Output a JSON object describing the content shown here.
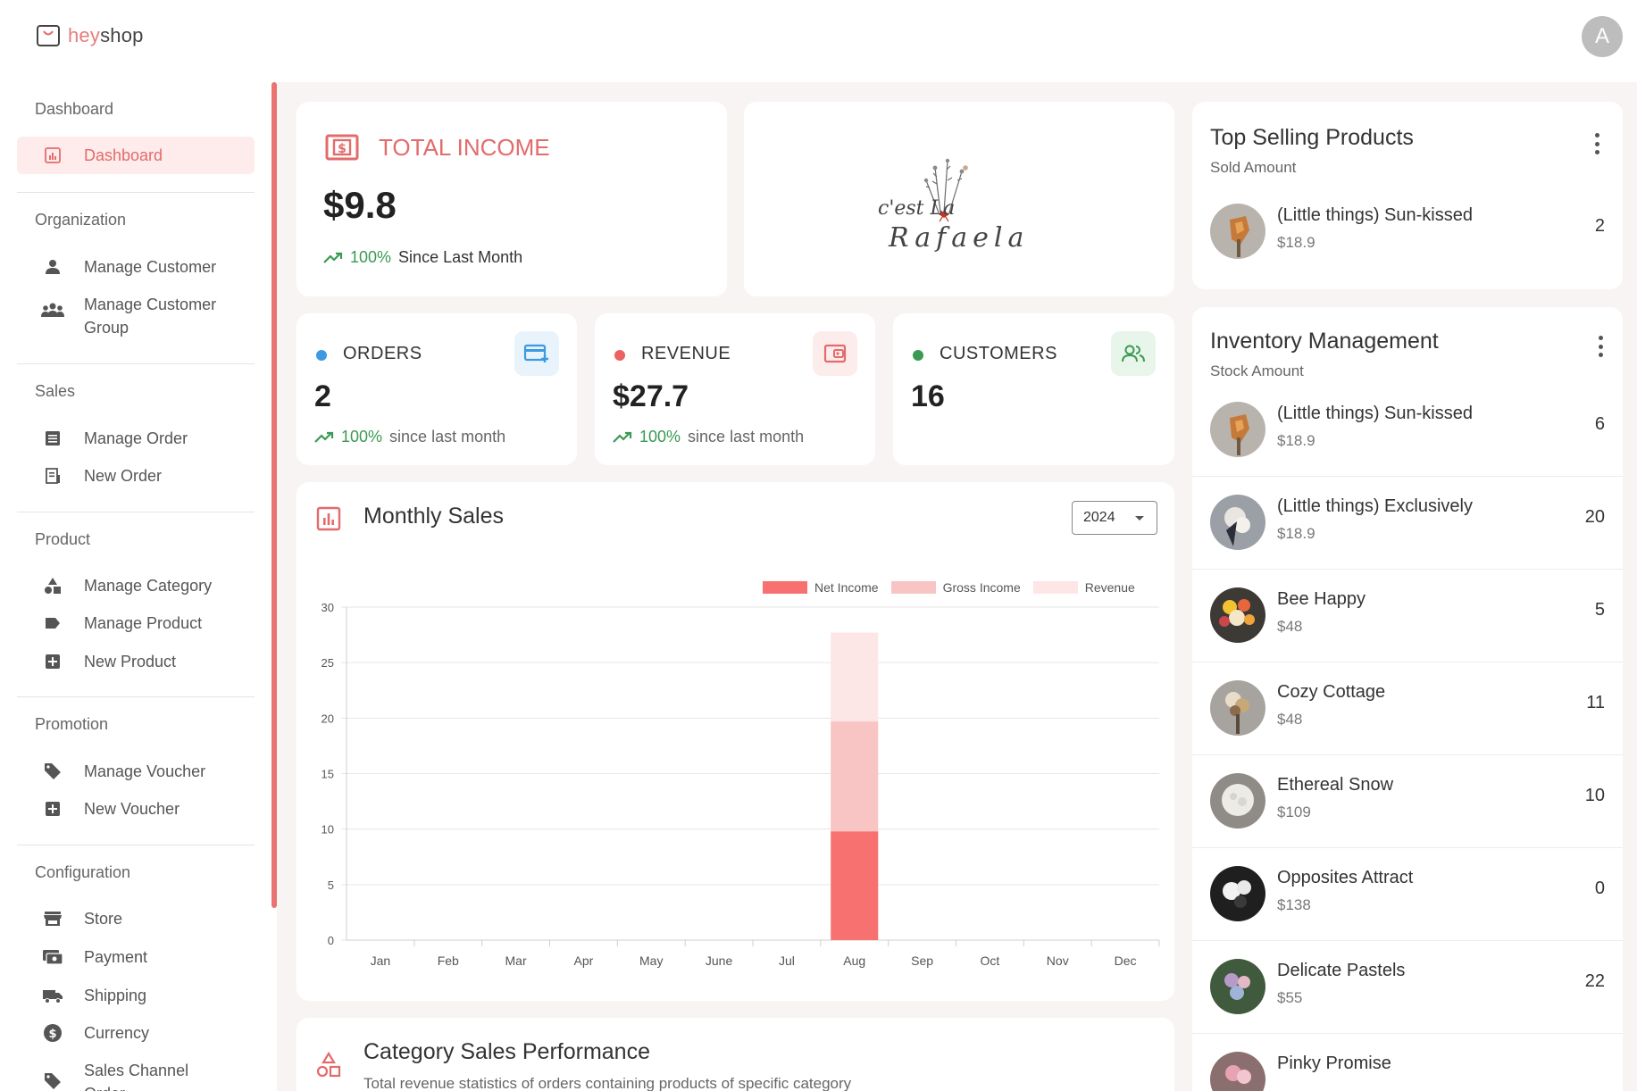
{
  "app": {
    "logo_hey": "hey",
    "logo_shop": "shop",
    "avatar_letter": "A"
  },
  "sidebar": {
    "sections": [
      {
        "title": "Dashboard",
        "items": [
          {
            "label": "Dashboard",
            "icon": "chart-icon",
            "active": true
          }
        ]
      },
      {
        "title": "Organization",
        "items": [
          {
            "label": "Manage Customer",
            "icon": "person-icon"
          },
          {
            "label": "Manage Customer Group",
            "icon": "group-icon"
          }
        ]
      },
      {
        "title": "Sales",
        "items": [
          {
            "label": "Manage Order",
            "icon": "list-icon"
          },
          {
            "label": "New Order",
            "icon": "receipt-icon"
          }
        ]
      },
      {
        "title": "Product",
        "items": [
          {
            "label": "Manage Category",
            "icon": "category-icon"
          },
          {
            "label": "Manage Product",
            "icon": "label-icon"
          },
          {
            "label": "New Product",
            "icon": "add-box-icon"
          }
        ]
      },
      {
        "title": "Promotion",
        "items": [
          {
            "label": "Manage Voucher",
            "icon": "tag-icon"
          },
          {
            "label": "New Voucher",
            "icon": "add-box-icon"
          }
        ]
      },
      {
        "title": "Configuration",
        "items": [
          {
            "label": "Store",
            "icon": "store-icon"
          },
          {
            "label": "Payment",
            "icon": "payment-icon"
          },
          {
            "label": "Shipping",
            "icon": "truck-icon"
          },
          {
            "label": "Currency",
            "icon": "currency-icon"
          },
          {
            "label": "Sales Channel Order",
            "icon": "tag-icon"
          }
        ]
      }
    ]
  },
  "income": {
    "title": "TOTAL INCOME",
    "value": "$9.8",
    "pct": "100%",
    "note": "Since Last Month"
  },
  "brand_card": {
    "line1": "c'est La",
    "line2": "Rafaela"
  },
  "stats": [
    {
      "label": "ORDERS",
      "value": "2",
      "pct": "100%",
      "note": "since last month",
      "dot": "#3b9ae1",
      "icon": "card-add-icon",
      "icon_color": "#3b9ae1",
      "icon_bg": "#e8f3fc"
    },
    {
      "label": "REVENUE",
      "value": "$27.7",
      "pct": "100%",
      "note": "since last month",
      "dot": "#ec6262",
      "icon": "wallet-icon",
      "icon_color": "#e36b6b",
      "icon_bg": "#fdecec"
    },
    {
      "label": "CUSTOMERS",
      "value": "16",
      "dot": "#3a9a52",
      "icon": "people-icon",
      "icon_color": "#3a9a52",
      "icon_bg": "#e7f5ea"
    }
  ],
  "monthly_sales": {
    "title": "Monthly Sales",
    "year": "2024"
  },
  "chart_data": {
    "type": "bar",
    "stacked": true,
    "categories": [
      "Jan",
      "Feb",
      "Mar",
      "Apr",
      "May",
      "June",
      "Jul",
      "Aug",
      "Sep",
      "Oct",
      "Nov",
      "Dec"
    ],
    "series": [
      {
        "name": "Net Income",
        "color": "#f87171",
        "values": [
          0,
          0,
          0,
          0,
          0,
          0,
          0,
          9.8,
          0,
          0,
          0,
          0
        ]
      },
      {
        "name": "Gross Income",
        "color": "#f9c4c4",
        "values": [
          0,
          0,
          0,
          0,
          0,
          0,
          0,
          9.9,
          0,
          0,
          0,
          0
        ]
      },
      {
        "name": "Revenue",
        "color": "#fde6e6",
        "values": [
          0,
          0,
          0,
          0,
          0,
          0,
          0,
          8.0,
          0,
          0,
          0,
          0
        ]
      }
    ],
    "yticks": [
      0,
      5,
      10,
      15,
      20,
      25,
      30
    ],
    "ylim": [
      0,
      30
    ],
    "legend": "top-right",
    "grid": true
  },
  "category_sales": {
    "title": "Category Sales Performance",
    "subtitle": "Total revenue statistics of orders containing products of specific category"
  },
  "top_selling": {
    "title": "Top Selling Products",
    "subtitle": "Sold Amount",
    "items": [
      {
        "name": "(Little things) Sun-kissed",
        "price": "$18.9",
        "count": "2"
      }
    ]
  },
  "inventory": {
    "title": "Inventory Management",
    "subtitle": "Stock Amount",
    "items": [
      {
        "name": "(Little things) Sun-kissed",
        "price": "$18.9",
        "count": "6"
      },
      {
        "name": "(Little things) Exclusively",
        "price": "$18.9",
        "count": "20"
      },
      {
        "name": "Bee Happy",
        "price": "$48",
        "count": "5"
      },
      {
        "name": "Cozy Cottage",
        "price": "$48",
        "count": "11"
      },
      {
        "name": "Ethereal Snow",
        "price": "$109",
        "count": "10"
      },
      {
        "name": "Opposites Attract",
        "price": "$138",
        "count": "0"
      },
      {
        "name": "Delicate Pastels",
        "price": "$55",
        "count": "22"
      },
      {
        "name": "Pinky Promise",
        "price": "",
        "count": ""
      }
    ]
  }
}
